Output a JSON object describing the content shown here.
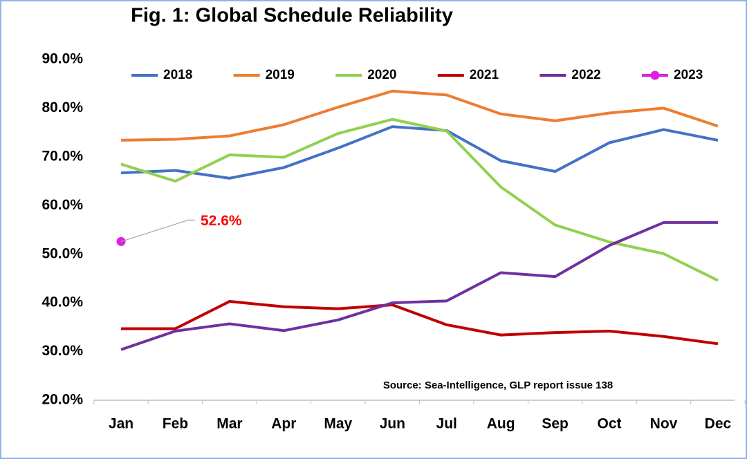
{
  "chart_data": {
    "type": "line",
    "title": "Fig. 1: Global Schedule Reliability",
    "annotation": "Source: Sea-Intelligence, GLP report issue 138",
    "categories": [
      "Jan",
      "Feb",
      "Mar",
      "Apr",
      "May",
      "Jun",
      "Jul",
      "Aug",
      "Sep",
      "Oct",
      "Nov",
      "Dec"
    ],
    "series": [
      {
        "name": "2018",
        "color": "#4472c4",
        "values": [
          66.7,
          67.2,
          65.6,
          67.8,
          71.8,
          76.2,
          75.4,
          69.2,
          67.0,
          72.9,
          75.6,
          73.4
        ]
      },
      {
        "name": "2019",
        "color": "#ed7d31",
        "values": [
          73.4,
          73.6,
          74.3,
          76.6,
          80.2,
          83.5,
          82.7,
          78.8,
          77.4,
          79.0,
          80.0,
          76.3
        ]
      },
      {
        "name": "2020",
        "color": "#92d050",
        "values": [
          68.5,
          65.0,
          70.4,
          69.9,
          74.8,
          77.7,
          75.3,
          63.8,
          56.0,
          52.5,
          50.1,
          44.6
        ]
      },
      {
        "name": "2021",
        "color": "#c00000",
        "values": [
          34.7,
          34.7,
          40.3,
          39.2,
          38.8,
          39.6,
          35.5,
          33.4,
          33.9,
          34.2,
          33.1,
          31.6
        ]
      },
      {
        "name": "2022",
        "color": "#7030a0",
        "values": [
          30.4,
          34.2,
          35.7,
          34.3,
          36.5,
          40.0,
          40.4,
          46.2,
          45.4,
          51.8,
          56.5,
          56.5
        ]
      },
      {
        "name": "2023",
        "color": "#e020e0",
        "values": [
          52.6,
          null,
          null,
          null,
          null,
          null,
          null,
          null,
          null,
          null,
          null,
          null
        ],
        "value_labels": [
          "52.6%",
          null,
          null,
          null,
          null,
          null,
          null,
          null,
          null,
          null,
          null,
          null
        ]
      }
    ],
    "ylim": [
      20,
      90
    ],
    "yticks": [
      {
        "value": 20,
        "label": "20.0%"
      },
      {
        "value": 30,
        "label": "30.0%"
      },
      {
        "value": 40,
        "label": "40.0%"
      },
      {
        "value": 50,
        "label": "50.0%"
      },
      {
        "value": 60,
        "label": "60.0%"
      },
      {
        "value": 70,
        "label": "70.0%"
      },
      {
        "value": 80,
        "label": "80.0%"
      },
      {
        "value": 90,
        "label": "90.0%"
      }
    ],
    "grid": false,
    "legend": "top"
  }
}
